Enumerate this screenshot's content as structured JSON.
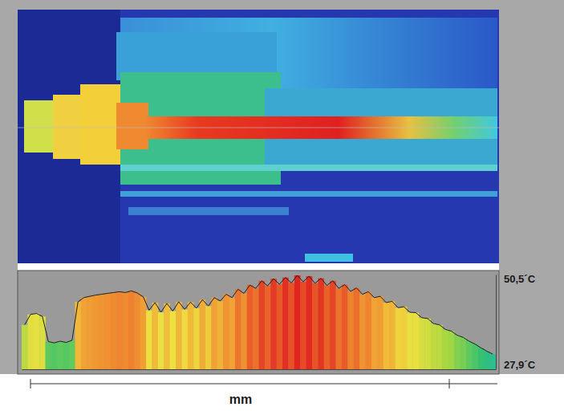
{
  "chart_data": {
    "type": "bar",
    "categories": [
      null,
      null,
      null,
      null,
      null,
      null,
      null,
      null,
      null,
      null,
      null,
      null,
      null,
      null,
      null,
      null,
      null,
      null,
      null,
      null,
      null,
      null,
      null,
      null,
      null,
      null,
      null,
      null,
      null,
      null,
      null,
      null,
      null,
      null,
      null,
      null,
      null,
      null,
      null,
      null,
      null,
      null,
      null,
      null,
      null,
      null,
      null,
      null,
      null,
      null,
      null,
      null,
      null,
      null,
      null,
      null,
      null,
      null,
      null,
      null,
      null,
      null,
      null,
      null,
      null,
      null,
      null,
      null,
      null,
      null,
      null,
      null,
      null,
      null,
      null,
      null,
      null,
      null,
      null,
      null
    ],
    "values": [
      38.5,
      41.0,
      41.2,
      40.5,
      34.5,
      34.2,
      34.6,
      34.3,
      34.8,
      44.0,
      45.0,
      45.3,
      45.6,
      45.8,
      46.0,
      46.2,
      46.4,
      46.2,
      46.6,
      46.1,
      45.2,
      42.0,
      43.8,
      41.5,
      43.6,
      41.8,
      44.0,
      42.2,
      43.9,
      42.5,
      44.5,
      43.0,
      45.0,
      44.2,
      45.8,
      45.0,
      47.0,
      46.0,
      48.0,
      47.2,
      49.0,
      47.8,
      49.5,
      48.2,
      49.8,
      48.5,
      50.3,
      48.8,
      50.1,
      48.4,
      49.6,
      47.9,
      49.0,
      47.2,
      48.1,
      46.5,
      47.3,
      45.8,
      46.4,
      45.0,
      45.3,
      43.8,
      44.1,
      42.6,
      42.8,
      41.5,
      41.4,
      40.2,
      40.0,
      38.8,
      38.5,
      37.4,
      37.0,
      36.0,
      35.5,
      34.6,
      33.9,
      33.0,
      32.2,
      31.5
    ],
    "ylim": [
      27.9,
      50.5
    ],
    "yticks": [
      {
        "value": 50.5,
        "label": "50,5´C"
      },
      {
        "value": 27.9,
        "label": "27,9´C"
      }
    ],
    "x_label": "mm",
    "tick_labels": "y"
  }
}
